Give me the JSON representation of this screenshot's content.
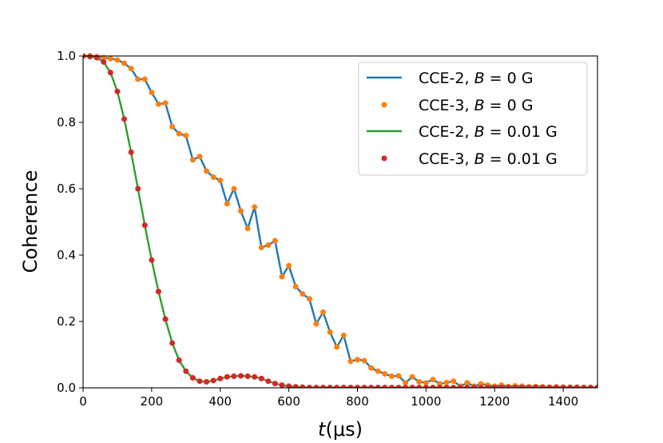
{
  "chart_data": {
    "type": "line",
    "xlabel": {
      "italic": "t",
      "rest": "(μs)"
    },
    "ylabel": "Coherence",
    "xlim": [
      0,
      1500
    ],
    "ylim": [
      0,
      1.0
    ],
    "xticks": [
      0,
      200,
      400,
      600,
      800,
      1000,
      1200,
      1400
    ],
    "yticks": [
      0.0,
      0.2,
      0.4,
      0.6,
      0.8,
      1.0
    ],
    "xtick_labels": [
      "0",
      "200",
      "400",
      "600",
      "800",
      "1000",
      "1200",
      "1400"
    ],
    "ytick_labels": [
      "0.0",
      "0.2",
      "0.4",
      "0.6",
      "0.8",
      "1.0"
    ],
    "grid": false,
    "legend_position": "top-right",
    "series": [
      {
        "name": "CCE-2, B = 0 G",
        "legend": {
          "pre": "CCE-2, ",
          "italic": "B",
          "post": " = 0 G"
        },
        "style": "line",
        "color": "#1f77b4",
        "x": [
          0,
          20,
          40,
          60,
          80,
          100,
          120,
          140,
          160,
          180,
          200,
          220,
          240,
          260,
          280,
          300,
          320,
          340,
          360,
          380,
          400,
          420,
          440,
          460,
          480,
          500,
          520,
          540,
          560,
          580,
          600,
          620,
          640,
          660,
          680,
          700,
          720,
          740,
          760,
          780,
          800,
          820,
          840,
          860,
          880,
          900,
          920,
          940,
          960,
          980,
          1000,
          1020,
          1040,
          1060,
          1080,
          1100,
          1120,
          1140,
          1160,
          1180,
          1200,
          1220,
          1240,
          1260,
          1280,
          1300,
          1320,
          1340,
          1360,
          1380,
          1400,
          1420,
          1440,
          1460,
          1480,
          1500
        ],
        "y": [
          1.0,
          1.0,
          0.998,
          0.995,
          0.992,
          0.988,
          0.978,
          0.962,
          0.93,
          0.93,
          0.89,
          0.855,
          0.858,
          0.787,
          0.766,
          0.76,
          0.687,
          0.697,
          0.653,
          0.635,
          0.625,
          0.555,
          0.6,
          0.533,
          0.48,
          0.545,
          0.423,
          0.43,
          0.443,
          0.335,
          0.368,
          0.305,
          0.283,
          0.268,
          0.193,
          0.228,
          0.168,
          0.123,
          0.158,
          0.08,
          0.085,
          0.082,
          0.06,
          0.05,
          0.042,
          0.035,
          0.036,
          0.015,
          0.033,
          0.018,
          0.015,
          0.025,
          0.012,
          0.016,
          0.02,
          0.005,
          0.015,
          0.005,
          0.012,
          0.008,
          0.005,
          0.008,
          0.004,
          0.006,
          0.005,
          0.003,
          0.004,
          0.003,
          0.002,
          0.003,
          0.002,
          0.002,
          0.002,
          0.001,
          0.001,
          0.001
        ]
      },
      {
        "name": "CCE-3, B = 0 G",
        "legend": {
          "pre": "CCE-3, ",
          "italic": "B",
          "post": " = 0 G"
        },
        "style": "points",
        "color": "#ff7f0e",
        "x": [
          0,
          20,
          40,
          60,
          80,
          100,
          120,
          140,
          160,
          180,
          200,
          220,
          240,
          260,
          280,
          300,
          320,
          340,
          360,
          380,
          400,
          420,
          440,
          460,
          480,
          500,
          520,
          540,
          560,
          580,
          600,
          620,
          640,
          660,
          680,
          700,
          720,
          740,
          760,
          780,
          800,
          820,
          840,
          860,
          880,
          900,
          920,
          940,
          960,
          980,
          1000,
          1020,
          1040,
          1060,
          1080,
          1100,
          1120,
          1140,
          1160,
          1180,
          1200,
          1220,
          1240,
          1260,
          1280,
          1300,
          1320,
          1340,
          1360,
          1380,
          1400,
          1420,
          1440,
          1460,
          1480,
          1500
        ],
        "y": [
          1.0,
          1.0,
          0.998,
          0.995,
          0.992,
          0.988,
          0.978,
          0.962,
          0.93,
          0.93,
          0.89,
          0.855,
          0.858,
          0.787,
          0.766,
          0.76,
          0.687,
          0.697,
          0.653,
          0.635,
          0.625,
          0.555,
          0.6,
          0.533,
          0.48,
          0.545,
          0.423,
          0.43,
          0.443,
          0.335,
          0.368,
          0.305,
          0.283,
          0.268,
          0.193,
          0.228,
          0.168,
          0.123,
          0.158,
          0.08,
          0.085,
          0.082,
          0.06,
          0.05,
          0.042,
          0.035,
          0.036,
          0.015,
          0.033,
          0.018,
          0.015,
          0.025,
          0.012,
          0.016,
          0.02,
          0.005,
          0.015,
          0.005,
          0.012,
          0.008,
          0.005,
          0.008,
          0.004,
          0.006,
          0.005,
          0.003,
          0.004,
          0.003,
          0.002,
          0.003,
          0.002,
          0.002,
          0.002,
          0.001,
          0.001,
          0.001
        ]
      },
      {
        "name": "CCE-2, B = 0.01 G",
        "legend": {
          "pre": "CCE-2, ",
          "italic": "B",
          "post": " = 0.01 G"
        },
        "style": "line",
        "color": "#2ca02c",
        "x": [
          0,
          20,
          40,
          60,
          80,
          100,
          120,
          140,
          160,
          180,
          200,
          220,
          240,
          260,
          280,
          300,
          320,
          340,
          360,
          380,
          400,
          420,
          440,
          460,
          480,
          500,
          520,
          540,
          560,
          580,
          600,
          620,
          640,
          660,
          680,
          700,
          720,
          740,
          760,
          780,
          800,
          820,
          840,
          860,
          880,
          900,
          920,
          940,
          960,
          980,
          1000,
          1020,
          1040,
          1060,
          1080,
          1100,
          1120,
          1140,
          1160,
          1180,
          1200,
          1220,
          1240,
          1260,
          1280,
          1300,
          1320,
          1340,
          1360,
          1380,
          1400,
          1420,
          1440,
          1460,
          1480,
          1500
        ],
        "y": [
          1.0,
          0.998,
          0.995,
          0.982,
          0.95,
          0.893,
          0.81,
          0.71,
          0.6,
          0.49,
          0.385,
          0.29,
          0.207,
          0.135,
          0.083,
          0.05,
          0.03,
          0.02,
          0.018,
          0.022,
          0.028,
          0.033,
          0.035,
          0.036,
          0.035,
          0.033,
          0.028,
          0.02,
          0.013,
          0.008,
          0.005,
          0.003,
          0.002,
          0.001,
          0.001,
          0.001,
          0.001,
          0.001,
          0.001,
          0.001,
          0.001,
          0.001,
          0.001,
          0.001,
          0.001,
          0.001,
          0.001,
          0.001,
          0.001,
          0.001,
          0.001,
          0.001,
          0.001,
          0.001,
          0.001,
          0.001,
          0.001,
          0.001,
          0.001,
          0.001,
          0.001,
          0.001,
          0.001,
          0.001,
          0.001,
          0.001,
          0.001,
          0.001,
          0.001,
          0.001,
          0.001,
          0.001,
          0.001,
          0.001,
          0.001,
          0.001
        ]
      },
      {
        "name": "CCE-3, B = 0.01 G",
        "legend": {
          "pre": "CCE-3, ",
          "italic": "B",
          "post": " = 0.01 G"
        },
        "style": "points",
        "color": "#d62728",
        "x": [
          0,
          20,
          40,
          60,
          80,
          100,
          120,
          140,
          160,
          180,
          200,
          220,
          240,
          260,
          280,
          300,
          320,
          340,
          360,
          380,
          400,
          420,
          440,
          460,
          480,
          500,
          520,
          540,
          560,
          580,
          600,
          620,
          640,
          660,
          680,
          700,
          720,
          740,
          760,
          780,
          800,
          820,
          840,
          860,
          880,
          900,
          920,
          940,
          960,
          980,
          1000,
          1020,
          1040,
          1060,
          1080,
          1100,
          1120,
          1140,
          1160,
          1180,
          1200,
          1220,
          1240,
          1260,
          1280,
          1300,
          1320,
          1340,
          1360,
          1380,
          1400,
          1420,
          1440,
          1460,
          1480,
          1500
        ],
        "y": [
          1.0,
          0.998,
          0.995,
          0.982,
          0.95,
          0.893,
          0.81,
          0.71,
          0.6,
          0.49,
          0.385,
          0.29,
          0.207,
          0.135,
          0.083,
          0.05,
          0.03,
          0.02,
          0.018,
          0.022,
          0.028,
          0.033,
          0.035,
          0.036,
          0.035,
          0.033,
          0.028,
          0.02,
          0.013,
          0.008,
          0.005,
          0.003,
          0.002,
          0.001,
          0.001,
          0.001,
          0.001,
          0.001,
          0.001,
          0.001,
          0.001,
          0.001,
          0.001,
          0.001,
          0.001,
          0.001,
          0.001,
          0.001,
          0.001,
          0.001,
          0.001,
          0.001,
          0.001,
          0.001,
          0.001,
          0.001,
          0.001,
          0.001,
          0.001,
          0.001,
          0.001,
          0.001,
          0.001,
          0.001,
          0.001,
          0.001,
          0.001,
          0.001,
          0.001,
          0.001,
          0.001,
          0.001,
          0.001,
          0.001,
          0.001,
          0.001
        ]
      }
    ]
  }
}
